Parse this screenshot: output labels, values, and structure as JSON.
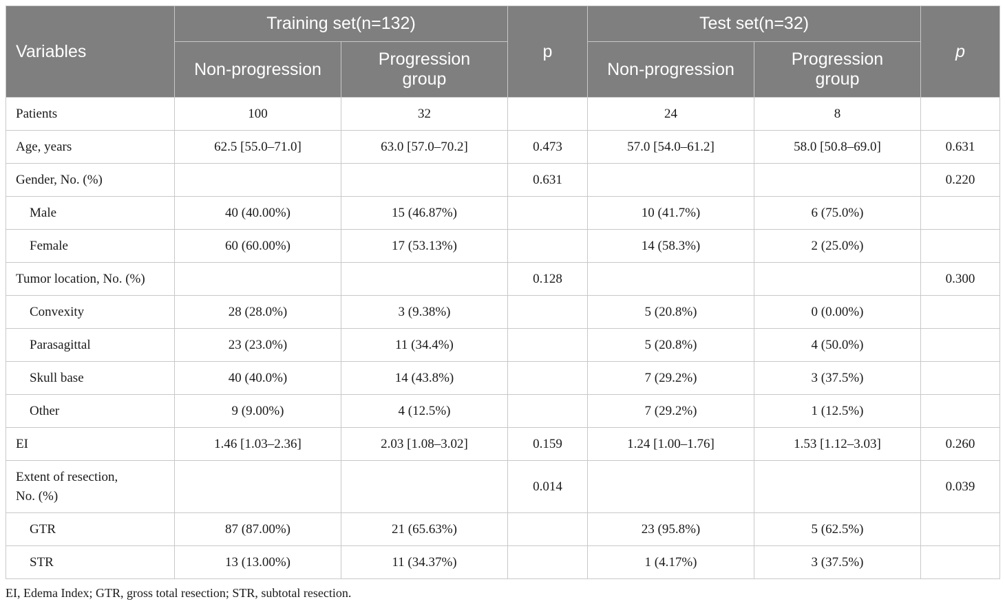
{
  "header": {
    "variables": "Variables",
    "training_group": "Training set(n=132)",
    "test_group": "Test set(n=32)",
    "p_training": "p",
    "p_test": "p",
    "non_progression": "Non-progression",
    "progression": "Progression group"
  },
  "rows": [
    {
      "label": "Patients",
      "tr_np": "100",
      "tr_pg": "32",
      "tr_p": "",
      "te_np": "24",
      "te_pg": "8",
      "te_p": ""
    },
    {
      "label": "Age, years",
      "tr_np": "62.5 [55.0–71.0]",
      "tr_pg": "63.0 [57.0–70.2]",
      "tr_p": "0.473",
      "te_np": "57.0 [54.0–61.2]",
      "te_pg": "58.0 [50.8–69.0]",
      "te_p": "0.631"
    },
    {
      "label": "Gender, No. (%)",
      "tr_np": "",
      "tr_pg": "",
      "tr_p": "0.631",
      "te_np": "",
      "te_pg": "",
      "te_p": "0.220"
    },
    {
      "label": "Male",
      "tr_np": "40 (40.00%)",
      "tr_pg": "15 (46.87%)",
      "tr_p": "",
      "te_np": "10 (41.7%)",
      "te_pg": "6 (75.0%)",
      "te_p": ""
    },
    {
      "label": "Female",
      "tr_np": "60 (60.00%)",
      "tr_pg": "17 (53.13%)",
      "tr_p": "",
      "te_np": "14 (58.3%)",
      "te_pg": "2 (25.0%)",
      "te_p": ""
    },
    {
      "label": "Tumor location, No. (%)",
      "tr_np": "",
      "tr_pg": "",
      "tr_p": "0.128",
      "te_np": "",
      "te_pg": "",
      "te_p": "0.300"
    },
    {
      "label": "Convexity",
      "tr_np": "28 (28.0%)",
      "tr_pg": "3 (9.38%)",
      "tr_p": "",
      "te_np": "5 (20.8%)",
      "te_pg": "0 (0.00%)",
      "te_p": ""
    },
    {
      "label": "Parasagittal",
      "tr_np": "23 (23.0%)",
      "tr_pg": "11 (34.4%)",
      "tr_p": "",
      "te_np": "5 (20.8%)",
      "te_pg": "4 (50.0%)",
      "te_p": ""
    },
    {
      "label": "Skull base",
      "tr_np": "40 (40.0%)",
      "tr_pg": "14 (43.8%)",
      "tr_p": "",
      "te_np": "7 (29.2%)",
      "te_pg": "3 (37.5%)",
      "te_p": ""
    },
    {
      "label": "Other",
      "tr_np": "9 (9.00%)",
      "tr_pg": "4 (12.5%)",
      "tr_p": "",
      "te_np": "7 (29.2%)",
      "te_pg": "1 (12.5%)",
      "te_p": ""
    },
    {
      "label": "EI",
      "tr_np": "1.46 [1.03–2.36]",
      "tr_pg": "2.03 [1.08–3.02]",
      "tr_p": "0.159",
      "te_np": "1.24 [1.00–1.76]",
      "te_pg": "1.53 [1.12–3.03]",
      "te_p": "0.260"
    },
    {
      "label": "Extent of resection, No. (%)",
      "tr_np": "",
      "tr_pg": "",
      "tr_p": "0.014",
      "te_np": "",
      "te_pg": "",
      "te_p": "0.039"
    },
    {
      "label": "GTR",
      "tr_np": "87 (87.00%)",
      "tr_pg": "21 (65.63%)",
      "tr_p": "",
      "te_np": "23 (95.8%)",
      "te_pg": "5 (62.5%)",
      "te_p": ""
    },
    {
      "label": "STR",
      "tr_np": "13 (13.00%)",
      "tr_pg": "11 (34.37%)",
      "tr_p": "",
      "te_np": "1 (4.17%)",
      "te_pg": "3 (37.5%)",
      "te_p": ""
    }
  ],
  "footnote": "EI, Edema Index; GTR, gross total resection; STR, subtotal resection."
}
